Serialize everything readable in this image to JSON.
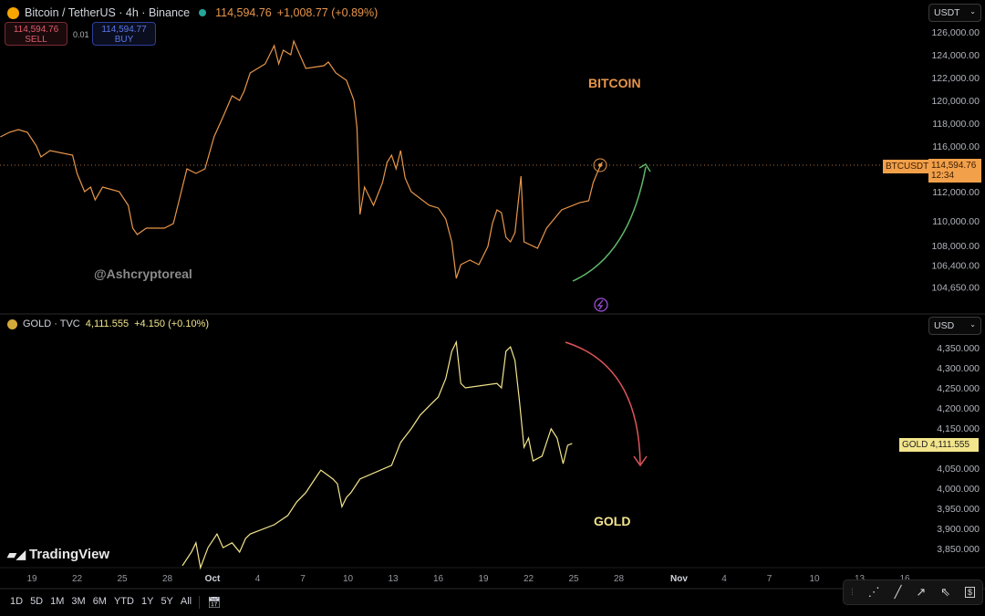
{
  "btc_header": {
    "symbol": "Bitcoin / TetherUS · 4h · Binance",
    "price": "114,594.76",
    "change": "+1,008.77 (+0.89%)",
    "sell_price": "114,594.76",
    "sell_label": "SELL",
    "spread": "0.01",
    "buy_price": "114,594.77",
    "buy_label": "BUY",
    "currency": "USDT"
  },
  "gold_header": {
    "symbol": "GOLD · TVC",
    "price": "4,111.555",
    "change": "+4.150 (+0.10%)",
    "currency": "USD"
  },
  "annotations": {
    "bitcoin": "BITCOIN",
    "gold": "GOLD",
    "watermark": "@Ashcryptoreal",
    "logo": "TradingView"
  },
  "btc_tag": {
    "label": "BTCUSDT",
    "price": "114,594.76",
    "countdown": "12:34"
  },
  "gold_tag": {
    "label": "GOLD",
    "price": "4,111.555"
  },
  "colors": {
    "btc": "#e8964a",
    "gold": "#f3e58c",
    "up_arrow": "#5fb86a",
    "down_arrow": "#e0555a"
  },
  "toolbar": {
    "ranges": [
      "1D",
      "5D",
      "1M",
      "3M",
      "6M",
      "YTD",
      "1Y",
      "5Y",
      "All"
    ]
  },
  "chart_data": [
    {
      "type": "line",
      "title": "Bitcoin / TetherUS · 4h · Binance",
      "ylabel": "USDT",
      "x_unit": "days since Sep 19",
      "yticks": [
        126000,
        124000,
        122000,
        120000,
        118000,
        116000,
        112000,
        110000,
        108000,
        106400,
        104650
      ],
      "ytick_labels": [
        "126,000.00",
        "124,000.00",
        "122,000.00",
        "120,000.00",
        "118,000.00",
        "116,000.00",
        "112,000.00",
        "110,000.00",
        "108,000.00",
        "106,400.00",
        "104,650.00"
      ],
      "points": [
        [
          -2.1,
          116800
        ],
        [
          -1.5,
          117200
        ],
        [
          -0.9,
          117440
        ],
        [
          -0.3,
          117200
        ],
        [
          0.3,
          116000
        ],
        [
          0.6,
          115040
        ],
        [
          1.2,
          115600
        ],
        [
          2.7,
          115200
        ],
        [
          3.0,
          113600
        ],
        [
          3.5,
          112000
        ],
        [
          3.9,
          112400
        ],
        [
          4.2,
          111700
        ],
        [
          4.7,
          112400
        ],
        [
          5.8,
          112000
        ],
        [
          6.4,
          111260
        ],
        [
          6.7,
          109410
        ],
        [
          7.0,
          108890
        ],
        [
          7.6,
          109410
        ],
        [
          8.8,
          109410
        ],
        [
          9.4,
          109780
        ],
        [
          9.7,
          111260
        ],
        [
          10.3,
          114000
        ],
        [
          10.9,
          113600
        ],
        [
          11.5,
          114000
        ],
        [
          12.1,
          116800
        ],
        [
          12.7,
          118560
        ],
        [
          13.3,
          120400
        ],
        [
          13.8,
          120000
        ],
        [
          14.1,
          120800
        ],
        [
          14.5,
          122400
        ],
        [
          15.5,
          123200
        ],
        [
          16.1,
          124800
        ],
        [
          16.4,
          123200
        ],
        [
          16.7,
          124400
        ],
        [
          17.2,
          124000
        ],
        [
          17.4,
          125200
        ],
        [
          17.8,
          124000
        ],
        [
          18.2,
          122800
        ],
        [
          19.4,
          123040
        ],
        [
          19.7,
          123360
        ],
        [
          20.2,
          122400
        ],
        [
          20.9,
          121760
        ],
        [
          21.4,
          120000
        ],
        [
          21.6,
          117600
        ],
        [
          21.8,
          110520
        ],
        [
          22.1,
          112400
        ],
        [
          22.7,
          111260
        ],
        [
          23.3,
          112800
        ],
        [
          23.6,
          114560
        ],
        [
          23.9,
          115200
        ],
        [
          24.2,
          114000
        ],
        [
          24.5,
          115600
        ],
        [
          24.8,
          113200
        ],
        [
          25.2,
          112000
        ],
        [
          26.4,
          111260
        ],
        [
          27.0,
          111040
        ],
        [
          27.5,
          110150
        ],
        [
          27.9,
          108300
        ],
        [
          28.2,
          105340
        ],
        [
          28.5,
          106450
        ],
        [
          29.1,
          106820
        ],
        [
          29.7,
          106450
        ],
        [
          30.3,
          107930
        ],
        [
          30.6,
          109780
        ],
        [
          30.9,
          110890
        ],
        [
          31.2,
          110670
        ],
        [
          31.5,
          108670
        ],
        [
          31.8,
          108300
        ],
        [
          32.1,
          109040
        ],
        [
          32.5,
          113360
        ],
        [
          32.7,
          108300
        ],
        [
          33.6,
          107780
        ],
        [
          34.2,
          109410
        ],
        [
          35.2,
          110890
        ],
        [
          36.4,
          111480
        ],
        [
          37.0,
          111630
        ],
        [
          37.3,
          112800
        ],
        [
          37.6,
          113760
        ],
        [
          37.9,
          114594.76
        ]
      ]
    },
    {
      "type": "line",
      "title": "GOLD · TVC",
      "ylabel": "USD",
      "x_unit": "days since Sep 19",
      "yticks": [
        4350,
        4300,
        4250,
        4200,
        4150,
        4050,
        4000,
        3950,
        3900,
        3850
      ],
      "ytick_labels": [
        "4,350.000",
        "4,300.000",
        "4,250.000",
        "4,200.000",
        "4,150.000",
        "4,050.000",
        "4,000.000",
        "3,950.000",
        "3,900.000",
        "3,850.000"
      ],
      "points": [
        [
          10.0,
          3807
        ],
        [
          10.6,
          3841
        ],
        [
          10.9,
          3864
        ],
        [
          11.2,
          3802
        ],
        [
          11.7,
          3852
        ],
        [
          12.3,
          3886
        ],
        [
          12.7,
          3852
        ],
        [
          13.3,
          3864
        ],
        [
          13.8,
          3841
        ],
        [
          14.2,
          3875
        ],
        [
          14.5,
          3886
        ],
        [
          16.1,
          3909
        ],
        [
          17.0,
          3932
        ],
        [
          17.6,
          3966
        ],
        [
          18.2,
          3989
        ],
        [
          18.8,
          4023
        ],
        [
          19.2,
          4045
        ],
        [
          19.6,
          4034
        ],
        [
          20.0,
          4023
        ],
        [
          20.3,
          4011
        ],
        [
          20.6,
          3954
        ],
        [
          20.9,
          3977
        ],
        [
          21.2,
          3989
        ],
        [
          21.8,
          4023
        ],
        [
          23.9,
          4057
        ],
        [
          24.5,
          4114
        ],
        [
          25.2,
          4148
        ],
        [
          25.8,
          4182
        ],
        [
          26.4,
          4205
        ],
        [
          27.0,
          4227
        ],
        [
          27.5,
          4273
        ],
        [
          27.9,
          4341
        ],
        [
          28.2,
          4364
        ],
        [
          28.5,
          4261
        ],
        [
          28.8,
          4250
        ],
        [
          30.9,
          4261
        ],
        [
          31.2,
          4250
        ],
        [
          31.5,
          4341
        ],
        [
          31.8,
          4352
        ],
        [
          32.1,
          4318
        ],
        [
          32.4,
          4216
        ],
        [
          32.7,
          4102
        ],
        [
          33.0,
          4125
        ],
        [
          33.3,
          4068
        ],
        [
          33.9,
          4080
        ],
        [
          34.5,
          4148
        ],
        [
          34.9,
          4125
        ],
        [
          35.3,
          4061
        ],
        [
          35.6,
          4107
        ],
        [
          35.9,
          4111.555
        ]
      ]
    }
  ],
  "x_axis": {
    "labels": [
      "19",
      "22",
      "25",
      "28",
      "Oct",
      "4",
      "7",
      "10",
      "13",
      "16",
      "19",
      "22",
      "25",
      "28",
      "Nov",
      "4",
      "7",
      "10",
      "13",
      "16"
    ],
    "days": [
      0,
      3,
      6,
      9,
      12,
      15,
      18,
      21,
      24,
      27,
      30,
      33,
      36,
      39,
      43,
      46,
      49,
      52,
      55,
      58
    ]
  }
}
